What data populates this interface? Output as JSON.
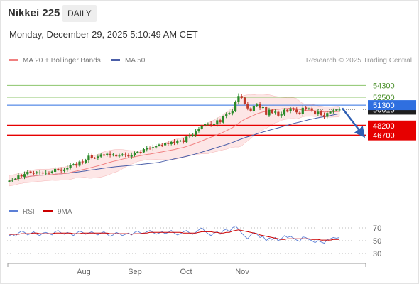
{
  "header": {
    "instrument": "Nikkei 225",
    "period": "DAILY"
  },
  "datetime": "Monday, December 29, 2025 5:10:49 AM CET",
  "legend": {
    "ma20": "MA 20 + Bollinger Bands",
    "ma50": "MA 50",
    "credit": "Research © 2025 Trading Central"
  },
  "rsi_legend": {
    "rsi": "RSI",
    "ma9": "9MA"
  },
  "colors": {
    "up_candle": "#2a8a2a",
    "down_candle": "#c0392b",
    "ma20": "#f08080",
    "ma50": "#4a5ea8",
    "bollinger_fill": "#fde0e0",
    "resistance_green": "#8cc46b",
    "pivot_blue": "#2f6fe0",
    "support_red": "#e60000",
    "rsi_line": "#5b7fd6",
    "rsi_ma": "#cc0000"
  },
  "chart_data": [
    {
      "type": "candlestick",
      "x_labels": [
        "Aug",
        "Sep",
        "Oct",
        "Nov"
      ],
      "ylim": [
        36500,
        56500
      ],
      "levels": [
        {
          "label": "54300",
          "value": 54300,
          "kind": "resistance"
        },
        {
          "label": "52500",
          "value": 52500,
          "kind": "resistance"
        },
        {
          "label": "51300",
          "value": 51300,
          "kind": "pivot"
        },
        {
          "label": "50615",
          "value": 50615,
          "kind": "last_price"
        },
        {
          "label": "48200",
          "value": 48200,
          "kind": "support"
        },
        {
          "label": "46700",
          "value": 46700,
          "kind": "support"
        }
      ],
      "series": [
        {
          "name": "MA 20 + Bollinger Bands",
          "kind": "ma20_bollinger"
        },
        {
          "name": "MA 50",
          "kind": "ma50"
        }
      ],
      "forecast_arrow": {
        "from": 50615,
        "to": 47200,
        "direction": "down"
      },
      "closes": [
        39800,
        39950,
        40100,
        40600,
        40450,
        40800,
        41150,
        41000,
        40900,
        41100,
        41050,
        40900,
        41000,
        40950,
        41200,
        41600,
        41450,
        41300,
        41500,
        41800,
        42200,
        42300,
        42100,
        42700,
        42600,
        42900,
        43600,
        43300,
        43200,
        43500,
        43800,
        43600,
        43900,
        43700,
        43800,
        43500,
        43600,
        43800,
        43700,
        43500,
        43700,
        44000,
        44200,
        44100,
        44600,
        44800,
        44700,
        44900,
        45100,
        45300,
        45200,
        45500,
        45400,
        45700,
        45600,
        45800,
        45900,
        45700,
        46500,
        46700,
        46800,
        47300,
        47700,
        48200,
        48400,
        48500,
        48300,
        48400,
        49000,
        48700,
        49600,
        49900,
        50100,
        50400,
        51800,
        52700,
        52400,
        51500,
        50800,
        50400,
        51200,
        51400,
        50900,
        51000,
        49800,
        50600,
        50100,
        50300,
        49700,
        49900,
        50600,
        50300,
        50800,
        50600,
        50200,
        50000,
        50900,
        50700,
        50800,
        50500,
        49900,
        50300,
        49800,
        49500,
        50100,
        50300,
        50500,
        50600,
        50615
      ]
    },
    {
      "type": "line",
      "title": "RSI",
      "ylim": [
        20,
        80
      ],
      "yticks": [
        70,
        50,
        30
      ],
      "series": [
        {
          "name": "RSI",
          "values": [
            58,
            60,
            57,
            62,
            65,
            63,
            59,
            61,
            64,
            60,
            58,
            62,
            63,
            61,
            59,
            64,
            66,
            62,
            60,
            63,
            61,
            58,
            62,
            65,
            63,
            60,
            62,
            64,
            61,
            59,
            62,
            64,
            60,
            57,
            59,
            63,
            61,
            58,
            60,
            62,
            59,
            63,
            65,
            62,
            61,
            64,
            66,
            63,
            60,
            62,
            64,
            61,
            63,
            66,
            62,
            59,
            61,
            64,
            66,
            62,
            60,
            63,
            67,
            70,
            65,
            61,
            58,
            62,
            64,
            60,
            66,
            68,
            64,
            70,
            73,
            68,
            62,
            57,
            53,
            59,
            63,
            60,
            55,
            57,
            50,
            54,
            52,
            55,
            50,
            53,
            58,
            55,
            57,
            54,
            51,
            49,
            56,
            55,
            52,
            50,
            47,
            50,
            48,
            46,
            52,
            53,
            55,
            54,
            55
          ]
        },
        {
          "name": "9MA",
          "values": [
            60,
            60,
            60,
            60,
            61,
            61,
            61,
            61,
            62,
            62,
            61,
            61,
            61,
            61,
            61,
            62,
            62,
            62,
            62,
            62,
            62,
            61,
            61,
            61,
            62,
            62,
            62,
            62,
            62,
            62,
            62,
            62,
            62,
            61,
            61,
            61,
            61,
            61,
            61,
            61,
            60,
            61,
            61,
            61,
            62,
            62,
            63,
            63,
            63,
            63,
            63,
            63,
            63,
            63,
            63,
            63,
            63,
            62,
            62,
            62,
            62,
            62,
            63,
            64,
            64,
            64,
            64,
            63,
            63,
            62,
            62,
            63,
            63,
            65,
            66,
            67,
            66,
            65,
            64,
            63,
            62,
            61,
            59,
            58,
            57,
            56,
            55,
            54,
            53,
            52,
            52,
            53,
            53,
            53,
            53,
            53,
            53,
            53,
            53,
            52,
            52,
            52,
            51,
            51,
            51,
            51,
            52,
            52,
            52
          ]
        }
      ]
    }
  ]
}
